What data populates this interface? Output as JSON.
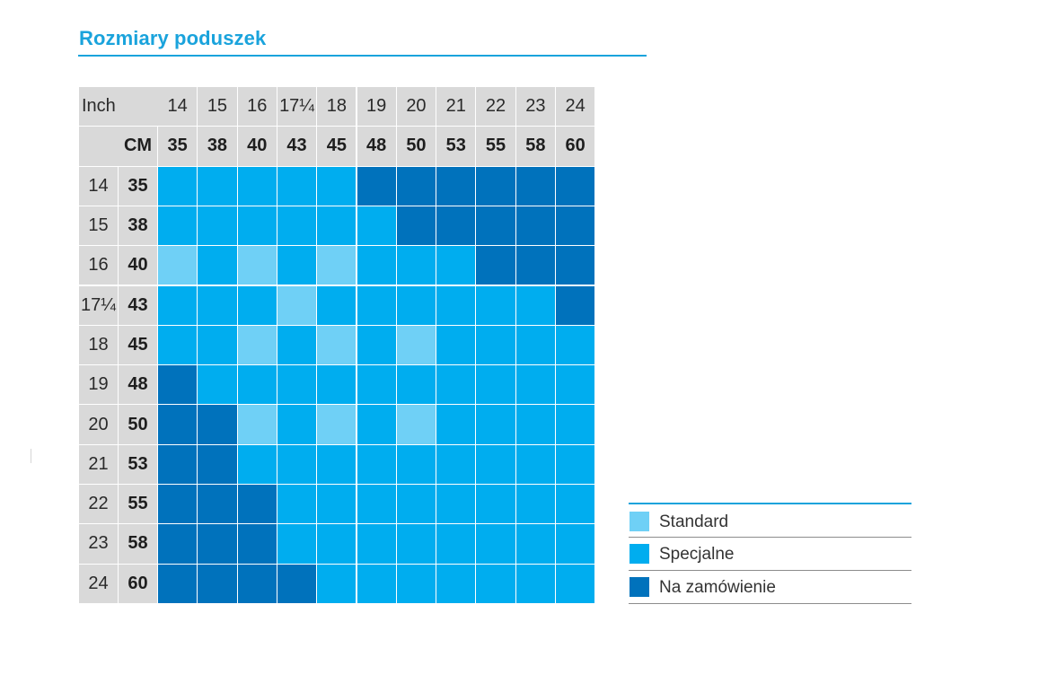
{
  "title": "Rozmiary poduszek",
  "table": {
    "inch_header": "Inch",
    "cm_header": "CM",
    "columns_inch": [
      "14",
      "15",
      "16",
      "17¼",
      "18",
      "19",
      "20",
      "21",
      "22",
      "23",
      "24"
    ],
    "columns_cm": [
      "35",
      "38",
      "40",
      "43",
      "45",
      "48",
      "50",
      "53",
      "55",
      "58",
      "60"
    ],
    "rows": [
      {
        "inch": "14",
        "cm": "35",
        "cells": [
          1,
          1,
          1,
          1,
          1,
          2,
          2,
          2,
          2,
          2,
          2
        ]
      },
      {
        "inch": "15",
        "cm": "38",
        "cells": [
          1,
          1,
          1,
          1,
          1,
          1,
          2,
          2,
          2,
          2,
          2
        ]
      },
      {
        "inch": "16",
        "cm": "40",
        "cells": [
          0,
          1,
          0,
          1,
          0,
          1,
          1,
          1,
          2,
          2,
          2
        ]
      },
      {
        "inch": "17¼",
        "cm": "43",
        "cells": [
          1,
          1,
          1,
          0,
          1,
          1,
          1,
          1,
          1,
          1,
          2
        ]
      },
      {
        "inch": "18",
        "cm": "45",
        "cells": [
          1,
          1,
          0,
          1,
          0,
          1,
          0,
          1,
          1,
          1,
          1
        ]
      },
      {
        "inch": "19",
        "cm": "48",
        "cells": [
          2,
          1,
          1,
          1,
          1,
          1,
          1,
          1,
          1,
          1,
          1
        ]
      },
      {
        "inch": "20",
        "cm": "50",
        "cells": [
          2,
          2,
          0,
          1,
          0,
          1,
          0,
          1,
          1,
          1,
          1
        ]
      },
      {
        "inch": "21",
        "cm": "53",
        "cells": [
          2,
          2,
          1,
          1,
          1,
          1,
          1,
          1,
          1,
          1,
          1
        ]
      },
      {
        "inch": "22",
        "cm": "55",
        "cells": [
          2,
          2,
          2,
          1,
          1,
          1,
          1,
          1,
          1,
          1,
          1
        ]
      },
      {
        "inch": "23",
        "cm": "58",
        "cells": [
          2,
          2,
          2,
          1,
          1,
          1,
          1,
          1,
          1,
          1,
          1
        ]
      },
      {
        "inch": "24",
        "cm": "60",
        "cells": [
          2,
          2,
          2,
          2,
          1,
          1,
          1,
          1,
          1,
          1,
          1
        ]
      }
    ]
  },
  "legend": [
    {
      "label": "Standard",
      "color": "#6fd0f6"
    },
    {
      "label": "Specjalne",
      "color": "#00adef"
    },
    {
      "label": "Na zamówienie",
      "color": "#0072bc"
    }
  ],
  "colors": {
    "accent": "#1aa3dc",
    "header_bg": "#d9d9d9",
    "standard": "#6fd0f6",
    "specjalne": "#00adef",
    "na_zamowienie": "#0072bc"
  }
}
